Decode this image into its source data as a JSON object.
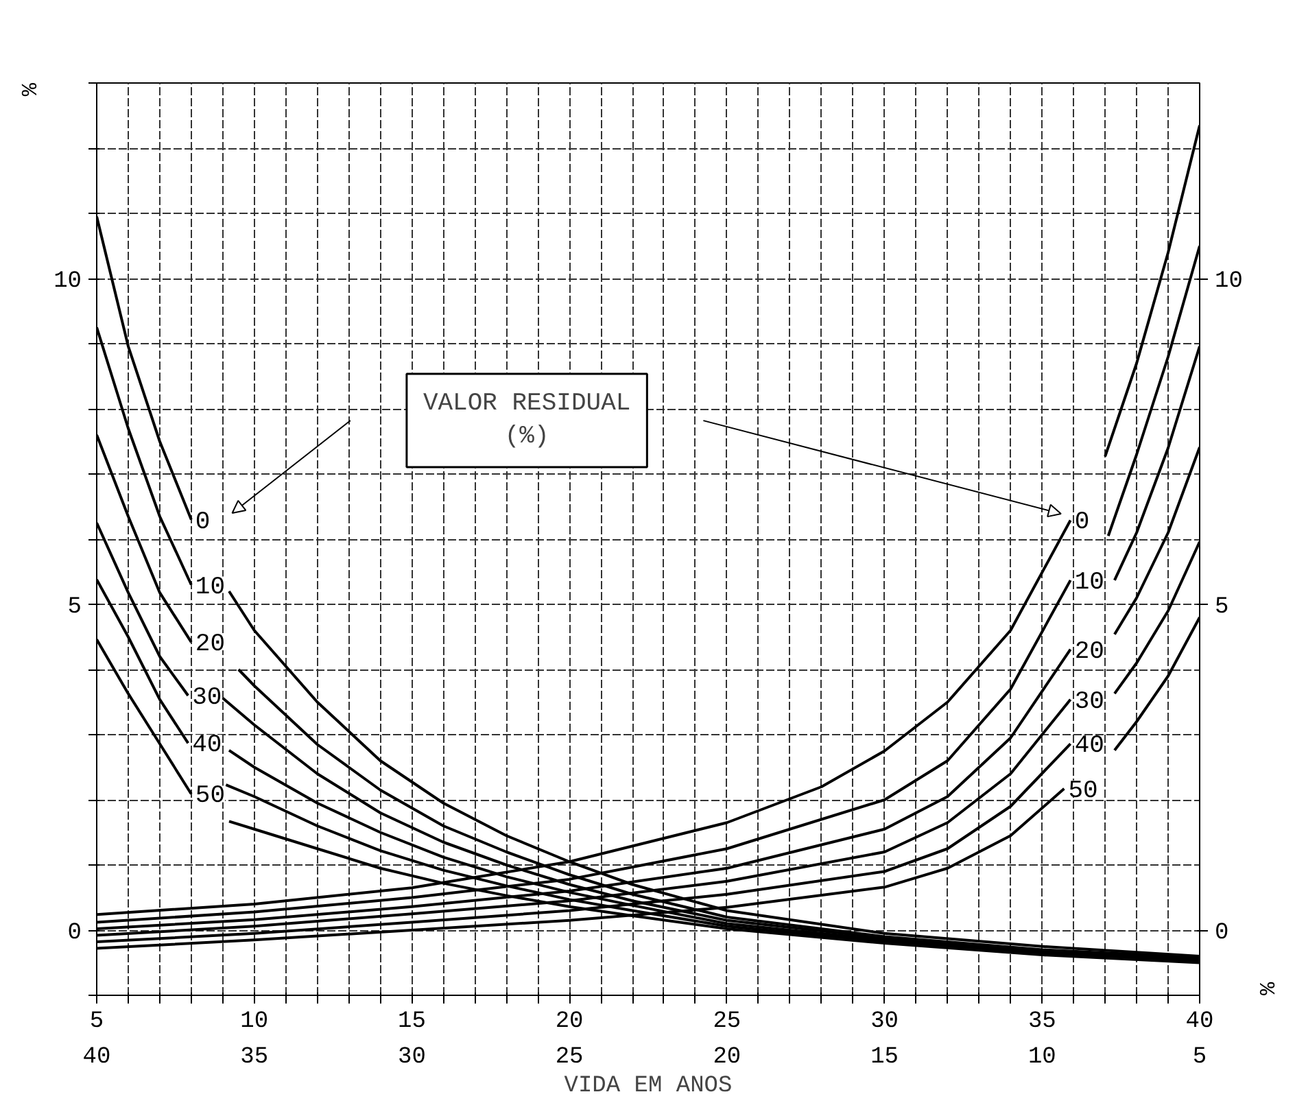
{
  "chart_data": {
    "type": "line",
    "xlabel": "VIDA EM ANOS",
    "ylabel": "%",
    "y2label": "%",
    "xlim": [
      5,
      40
    ],
    "ylim": [
      -1,
      13
    ],
    "y2lim": [
      -1,
      13
    ],
    "x2lim": [
      40,
      5
    ],
    "xticks": [
      5,
      {
        "value": 6,
        "label": null
      },
      {
        "value": 7,
        "label": null
      },
      {
        "value": 8,
        "label": null
      },
      {
        "value": 9,
        "label": null
      },
      10,
      {
        "value": 11,
        "label": null
      },
      {
        "value": 12,
        "label": null
      },
      {
        "value": 13,
        "label": null
      },
      {
        "value": 14,
        "label": null
      },
      15,
      {
        "value": 16,
        "label": null
      },
      {
        "value": 17,
        "label": null
      },
      {
        "value": 18,
        "label": null
      },
      {
        "value": 19,
        "label": null
      },
      20,
      {
        "value": 21,
        "label": null
      },
      {
        "value": 22,
        "label": null
      },
      {
        "value": 23,
        "label": null
      },
      {
        "value": 24,
        "label": null
      },
      25,
      {
        "value": 26,
        "label": null
      },
      {
        "value": 27,
        "label": null
      },
      {
        "value": 28,
        "label": null
      },
      {
        "value": 29,
        "label": null
      },
      30,
      {
        "value": 31,
        "label": null
      },
      {
        "value": 32,
        "label": null
      },
      {
        "value": 33,
        "label": null
      },
      {
        "value": 34,
        "label": null
      },
      35,
      {
        "value": 36,
        "label": null
      },
      {
        "value": 37,
        "label": null
      },
      {
        "value": 38,
        "label": null
      },
      {
        "value": 39,
        "label": null
      },
      40
    ],
    "x2ticks": [
      40,
      35,
      30,
      25,
      20,
      15,
      10,
      5
    ],
    "yticks": [
      {
        "value": -1,
        "label": null
      },
      0,
      {
        "value": 1,
        "label": null
      },
      {
        "value": 2,
        "label": null
      },
      {
        "value": 3,
        "label": null
      },
      {
        "value": 4,
        "label": null
      },
      5,
      {
        "value": 6,
        "label": null
      },
      {
        "value": 7,
        "label": null
      },
      {
        "value": 8,
        "label": null
      },
      {
        "value": 9,
        "label": null
      },
      10,
      {
        "value": 11,
        "label": null
      },
      {
        "value": 12,
        "label": null
      },
      {
        "value": 13,
        "label": null
      }
    ],
    "y2ticks": [
      0,
      5,
      10
    ],
    "grid": true,
    "annotations": [
      "VALOR RESIDUAL\n(%)"
    ],
    "series": [
      {
        "name": "0",
        "color": "#000000",
        "x": [
          5,
          10,
          15,
          20,
          25,
          28,
          30,
          32,
          34,
          35.9,
          36.5,
          37,
          38,
          39,
          40
        ],
        "values": [
          0.24,
          0.4,
          0.65,
          1.05,
          1.65,
          2.2,
          2.75,
          3.5,
          4.6,
          6.29,
          null,
          7.27,
          8.7,
          10.4,
          12.35
        ]
      },
      {
        "name": "10",
        "color": "#000000",
        "x": [
          5,
          10,
          15,
          20,
          25,
          30,
          32,
          34,
          35.9,
          36.5,
          37.1,
          38,
          39,
          40
        ],
        "values": [
          0.12,
          0.28,
          0.5,
          0.78,
          1.25,
          2.0,
          2.6,
          3.7,
          5.37,
          null,
          6.05,
          7.3,
          8.8,
          10.5
        ]
      },
      {
        "name": "20",
        "color": "#000000",
        "x": [
          5,
          10,
          15,
          20,
          25,
          30,
          32,
          34,
          35.9,
          36.6,
          37.3,
          38,
          39,
          40
        ],
        "values": [
          0.02,
          0.16,
          0.36,
          0.6,
          0.95,
          1.55,
          2.05,
          2.95,
          4.31,
          null,
          5.37,
          6.1,
          7.4,
          8.96
        ]
      },
      {
        "name": "30",
        "color": "#000000",
        "x": [
          5,
          10,
          15,
          20,
          25,
          30,
          32,
          34,
          35.9,
          36.6,
          37.3,
          38,
          39,
          40
        ],
        "values": [
          -0.08,
          0.06,
          0.25,
          0.45,
          0.75,
          1.2,
          1.65,
          2.4,
          3.54,
          null,
          4.54,
          5.1,
          6.1,
          7.41
        ]
      },
      {
        "name": "40",
        "color": "#000000",
        "x": [
          5,
          10,
          15,
          20,
          25,
          30,
          32,
          34,
          35.9,
          36.6,
          37.3,
          38,
          39,
          40
        ],
        "values": [
          -0.18,
          -0.05,
          0.12,
          0.3,
          0.55,
          0.9,
          1.25,
          1.9,
          2.86,
          null,
          3.63,
          4.1,
          4.9,
          5.96
        ]
      },
      {
        "name": "50",
        "color": "#000000",
        "x": [
          5,
          10,
          15,
          20,
          25,
          30,
          32,
          34,
          35.7,
          36.5,
          37.3,
          38,
          39,
          40
        ],
        "values": [
          -0.28,
          -0.15,
          0.0,
          0.15,
          0.35,
          0.66,
          0.95,
          1.45,
          2.17,
          null,
          2.76,
          3.2,
          3.9,
          4.8
        ]
      },
      {
        "name": "0",
        "color": "#000000",
        "x": [
          5,
          6,
          7,
          8,
          8.6,
          9.2,
          10,
          12,
          14,
          16,
          18,
          20,
          22,
          25,
          30,
          35,
          40
        ],
        "values": [
          10.95,
          8.96,
          7.5,
          6.3,
          null,
          5.2,
          4.6,
          3.5,
          2.6,
          1.95,
          1.45,
          1.05,
          0.7,
          0.3,
          -0.05,
          -0.25,
          -0.4
        ]
      },
      {
        "name": "10",
        "color": "#000000",
        "x": [
          5,
          6,
          7,
          8,
          8.7,
          9.5,
          10,
          12,
          14,
          16,
          18,
          20,
          22,
          25,
          30,
          35,
          40
        ],
        "values": [
          9.25,
          7.7,
          6.35,
          5.3,
          null,
          4.0,
          3.75,
          2.85,
          2.15,
          1.6,
          1.2,
          0.85,
          0.55,
          0.2,
          -0.1,
          -0.3,
          -0.42
        ]
      },
      {
        "name": "20",
        "color": "#000000",
        "x": [
          5,
          6,
          7,
          8,
          8.5,
          9.0,
          10,
          12,
          14,
          16,
          18,
          20,
          22,
          25,
          30,
          35,
          40
        ],
        "values": [
          7.6,
          6.35,
          5.18,
          4.42,
          null,
          3.56,
          3.15,
          2.4,
          1.8,
          1.35,
          1.0,
          0.7,
          0.45,
          0.15,
          -0.12,
          -0.32,
          -0.44
        ]
      },
      {
        "name": "30",
        "color": "#000000",
        "x": [
          5,
          6,
          7,
          7.9,
          8.5,
          9.2,
          10,
          12,
          14,
          16,
          18,
          20,
          22,
          25,
          30,
          35,
          40
        ],
        "values": [
          6.25,
          5.18,
          4.2,
          3.6,
          null,
          2.76,
          2.5,
          1.95,
          1.5,
          1.12,
          0.82,
          0.58,
          0.38,
          0.1,
          -0.15,
          -0.34,
          -0.46
        ]
      },
      {
        "name": "40",
        "color": "#000000",
        "x": [
          5,
          6,
          7,
          7.9,
          8.5,
          9.1,
          10,
          12,
          14,
          16,
          18,
          20,
          22,
          25,
          30,
          35,
          40
        ],
        "values": [
          5.38,
          4.5,
          3.54,
          2.87,
          null,
          2.23,
          2.05,
          1.6,
          1.22,
          0.92,
          0.68,
          0.47,
          0.3,
          0.06,
          -0.18,
          -0.36,
          -0.48
        ]
      },
      {
        "name": "50",
        "color": "#000000",
        "x": [
          5,
          6,
          7,
          8,
          8.6,
          9.2,
          10,
          12,
          14,
          16,
          18,
          20,
          22,
          25,
          30,
          35,
          40
        ],
        "values": [
          4.46,
          3.63,
          2.86,
          2.09,
          null,
          1.67,
          1.55,
          1.25,
          0.95,
          0.72,
          0.53,
          0.36,
          0.22,
          0.02,
          -0.2,
          -0.38,
          -0.5
        ]
      }
    ]
  }
}
